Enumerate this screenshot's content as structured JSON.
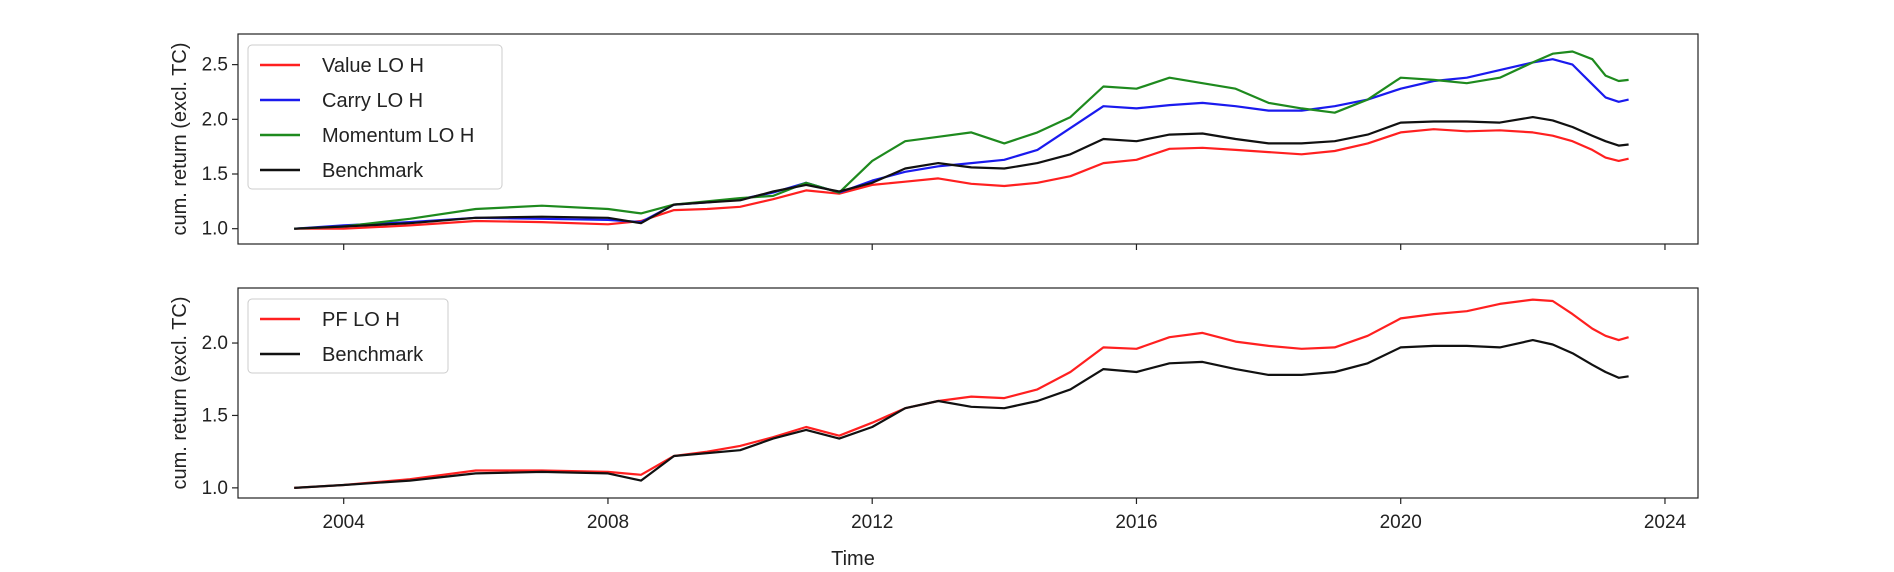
{
  "chart_data": [
    {
      "type": "line",
      "title": "",
      "xlabel": "",
      "ylabel": "cum. return (excl. TC)",
      "xlim": [
        2002.4,
        2024.5
      ],
      "ylim": [
        0.86,
        2.78
      ],
      "yticks": [
        1.0,
        1.5,
        2.0,
        2.5
      ],
      "ytick_labels": [
        "1.0",
        "1.5",
        "2.0",
        "2.5"
      ],
      "xticks": [
        2004,
        2008,
        2012,
        2016,
        2020,
        2024
      ],
      "show_x_tick_labels": false,
      "grid": false,
      "legend_position": "top-left",
      "series": [
        {
          "name": "Value LO H",
          "color": "#ff2020",
          "x": [
            2003.25,
            2004,
            2005,
            2006,
            2007,
            2008,
            2008.5,
            2009,
            2009.5,
            2010,
            2010.5,
            2011,
            2011.5,
            2012,
            2012.5,
            2013,
            2013.5,
            2014,
            2014.5,
            2015,
            2015.5,
            2016,
            2016.5,
            2017,
            2017.5,
            2018,
            2018.5,
            2019,
            2019.5,
            2020,
            2020.5,
            2021,
            2021.5,
            2022,
            2022.3,
            2022.6,
            2022.9,
            2023.1,
            2023.3,
            2023.45
          ],
          "y": [
            1.0,
            1.0,
            1.03,
            1.07,
            1.06,
            1.04,
            1.07,
            1.17,
            1.18,
            1.2,
            1.27,
            1.35,
            1.32,
            1.4,
            1.43,
            1.46,
            1.41,
            1.39,
            1.42,
            1.48,
            1.6,
            1.63,
            1.73,
            1.74,
            1.72,
            1.7,
            1.68,
            1.71,
            1.78,
            1.88,
            1.91,
            1.89,
            1.9,
            1.88,
            1.85,
            1.8,
            1.72,
            1.65,
            1.62,
            1.64
          ]
        },
        {
          "name": "Carry LO H",
          "color": "#1a1aee",
          "x": [
            2003.25,
            2004,
            2005,
            2006,
            2007,
            2008,
            2008.5,
            2009,
            2009.5,
            2010,
            2010.5,
            2011,
            2011.5,
            2012,
            2012.5,
            2013,
            2013.5,
            2014,
            2014.5,
            2015,
            2015.5,
            2016,
            2016.5,
            2017,
            2017.5,
            2018,
            2018.5,
            2019,
            2019.5,
            2020,
            2020.5,
            2021,
            2021.5,
            2022,
            2022.3,
            2022.6,
            2022.9,
            2023.1,
            2023.3,
            2023.45
          ],
          "y": [
            1.0,
            1.03,
            1.06,
            1.1,
            1.09,
            1.08,
            1.06,
            1.22,
            1.24,
            1.27,
            1.33,
            1.42,
            1.33,
            1.44,
            1.52,
            1.57,
            1.6,
            1.63,
            1.72,
            1.92,
            2.12,
            2.1,
            2.13,
            2.15,
            2.12,
            2.08,
            2.08,
            2.12,
            2.18,
            2.28,
            2.35,
            2.38,
            2.45,
            2.52,
            2.55,
            2.5,
            2.32,
            2.2,
            2.16,
            2.18
          ]
        },
        {
          "name": "Momentum LO H",
          "color": "#1e8a1e",
          "x": [
            2003.25,
            2004,
            2005,
            2006,
            2007,
            2008,
            2008.5,
            2009,
            2009.5,
            2010,
            2010.5,
            2011,
            2011.5,
            2012,
            2012.5,
            2013,
            2013.5,
            2014,
            2014.5,
            2015,
            2015.5,
            2016,
            2016.5,
            2017,
            2017.5,
            2018,
            2018.5,
            2019,
            2019.5,
            2020,
            2020.5,
            2021,
            2021.5,
            2022,
            2022.3,
            2022.6,
            2022.9,
            2023.1,
            2023.3,
            2023.45
          ],
          "y": [
            1.0,
            1.02,
            1.09,
            1.18,
            1.21,
            1.18,
            1.14,
            1.22,
            1.25,
            1.28,
            1.3,
            1.42,
            1.33,
            1.62,
            1.8,
            1.84,
            1.88,
            1.78,
            1.88,
            2.02,
            2.3,
            2.28,
            2.38,
            2.33,
            2.28,
            2.15,
            2.1,
            2.06,
            2.18,
            2.38,
            2.36,
            2.33,
            2.38,
            2.52,
            2.6,
            2.62,
            2.55,
            2.4,
            2.35,
            2.36
          ]
        },
        {
          "name": "Benchmark",
          "color": "#111111",
          "x": [
            2003.25,
            2004,
            2005,
            2006,
            2007,
            2008,
            2008.5,
            2009,
            2009.5,
            2010,
            2010.5,
            2011,
            2011.5,
            2012,
            2012.5,
            2013,
            2013.5,
            2014,
            2014.5,
            2015,
            2015.5,
            2016,
            2016.5,
            2017,
            2017.5,
            2018,
            2018.5,
            2019,
            2019.5,
            2020,
            2020.5,
            2021,
            2021.5,
            2022,
            2022.3,
            2022.6,
            2022.9,
            2023.1,
            2023.3,
            2023.45
          ],
          "y": [
            1.0,
            1.02,
            1.05,
            1.1,
            1.11,
            1.1,
            1.05,
            1.22,
            1.24,
            1.26,
            1.34,
            1.4,
            1.34,
            1.42,
            1.55,
            1.6,
            1.56,
            1.55,
            1.6,
            1.68,
            1.82,
            1.8,
            1.86,
            1.87,
            1.82,
            1.78,
            1.78,
            1.8,
            1.86,
            1.97,
            1.98,
            1.98,
            1.97,
            2.02,
            1.99,
            1.93,
            1.85,
            1.8,
            1.76,
            1.77
          ]
        }
      ]
    },
    {
      "type": "line",
      "title": "",
      "xlabel": "Time",
      "ylabel": "cum. return (excl. TC)",
      "xlim": [
        2002.4,
        2024.5
      ],
      "ylim": [
        0.93,
        2.38
      ],
      "yticks": [
        1.0,
        1.5,
        2.0
      ],
      "ytick_labels": [
        "1.0",
        "1.5",
        "2.0"
      ],
      "xticks": [
        2004,
        2008,
        2012,
        2016,
        2020,
        2024
      ],
      "xtick_labels": [
        "2004",
        "2008",
        "2012",
        "2016",
        "2020",
        "2024"
      ],
      "show_x_tick_labels": true,
      "grid": false,
      "legend_position": "top-left",
      "series": [
        {
          "name": "PF LO H",
          "color": "#ff2020",
          "x": [
            2003.25,
            2004,
            2005,
            2006,
            2007,
            2008,
            2008.5,
            2009,
            2009.5,
            2010,
            2010.5,
            2011,
            2011.5,
            2012,
            2012.5,
            2013,
            2013.5,
            2014,
            2014.5,
            2015,
            2015.5,
            2016,
            2016.5,
            2017,
            2017.5,
            2018,
            2018.5,
            2019,
            2019.5,
            2020,
            2020.5,
            2021,
            2021.5,
            2022,
            2022.3,
            2022.6,
            2022.9,
            2023.1,
            2023.3,
            2023.45
          ],
          "y": [
            1.0,
            1.02,
            1.06,
            1.12,
            1.12,
            1.11,
            1.09,
            1.22,
            1.25,
            1.29,
            1.35,
            1.42,
            1.36,
            1.45,
            1.55,
            1.6,
            1.63,
            1.62,
            1.68,
            1.8,
            1.97,
            1.96,
            2.04,
            2.07,
            2.01,
            1.98,
            1.96,
            1.97,
            2.05,
            2.17,
            2.2,
            2.22,
            2.27,
            2.3,
            2.29,
            2.2,
            2.1,
            2.05,
            2.02,
            2.04
          ]
        },
        {
          "name": "Benchmark",
          "color": "#111111",
          "x": [
            2003.25,
            2004,
            2005,
            2006,
            2007,
            2008,
            2008.5,
            2009,
            2009.5,
            2010,
            2010.5,
            2011,
            2011.5,
            2012,
            2012.5,
            2013,
            2013.5,
            2014,
            2014.5,
            2015,
            2015.5,
            2016,
            2016.5,
            2017,
            2017.5,
            2018,
            2018.5,
            2019,
            2019.5,
            2020,
            2020.5,
            2021,
            2021.5,
            2022,
            2022.3,
            2022.6,
            2022.9,
            2023.1,
            2023.3,
            2023.45
          ],
          "y": [
            1.0,
            1.02,
            1.05,
            1.1,
            1.11,
            1.1,
            1.05,
            1.22,
            1.24,
            1.26,
            1.34,
            1.4,
            1.34,
            1.42,
            1.55,
            1.6,
            1.56,
            1.55,
            1.6,
            1.68,
            1.82,
            1.8,
            1.86,
            1.87,
            1.82,
            1.78,
            1.78,
            1.8,
            1.86,
            1.97,
            1.98,
            1.98,
            1.97,
            2.02,
            1.99,
            1.93,
            1.85,
            1.8,
            1.76,
            1.77
          ]
        }
      ]
    }
  ]
}
